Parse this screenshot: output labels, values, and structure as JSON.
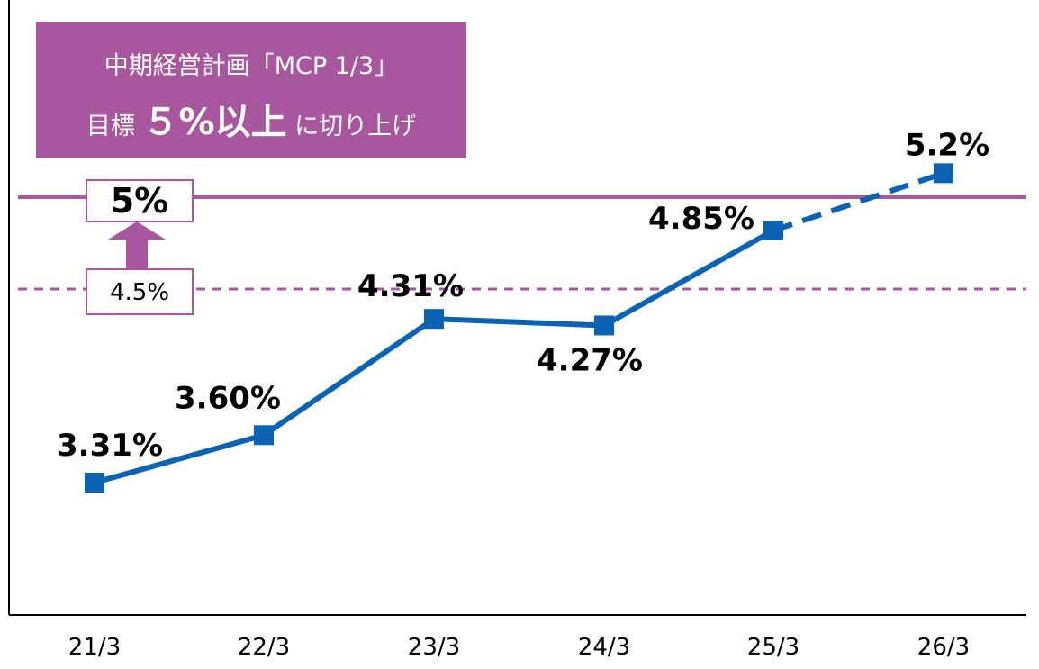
{
  "banner": {
    "line1": "中期経営計画「MCP 1/3」",
    "line2_prefix": "目標",
    "line2_big": "５%以上",
    "line2_suffix": "に切り上げ"
  },
  "targets": {
    "new_label": "5%",
    "old_label": "4.5%",
    "new_value": 5.0,
    "old_value": 4.5
  },
  "colors": {
    "series": "#0a63b5",
    "target": "#a8579f",
    "axis": "#000000"
  },
  "chart_data": {
    "type": "line",
    "categories": [
      "21/3",
      "22/3",
      "23/3",
      "24/3",
      "25/3",
      "26/3"
    ],
    "values": [
      3.31,
      3.6,
      4.31,
      4.27,
      4.85,
      5.2
    ],
    "data_labels": [
      "3.31%",
      "3.60%",
      "4.31%",
      "4.27%",
      "4.85%",
      "5.2%"
    ],
    "dashed_from_index": 4,
    "reference_lines": [
      {
        "value": 5.0,
        "style": "solid"
      },
      {
        "value": 4.5,
        "style": "dashed"
      }
    ],
    "ylim": [
      2.5,
      5.6
    ],
    "grid": false,
    "xlabel": "",
    "ylabel": "",
    "title": ""
  }
}
